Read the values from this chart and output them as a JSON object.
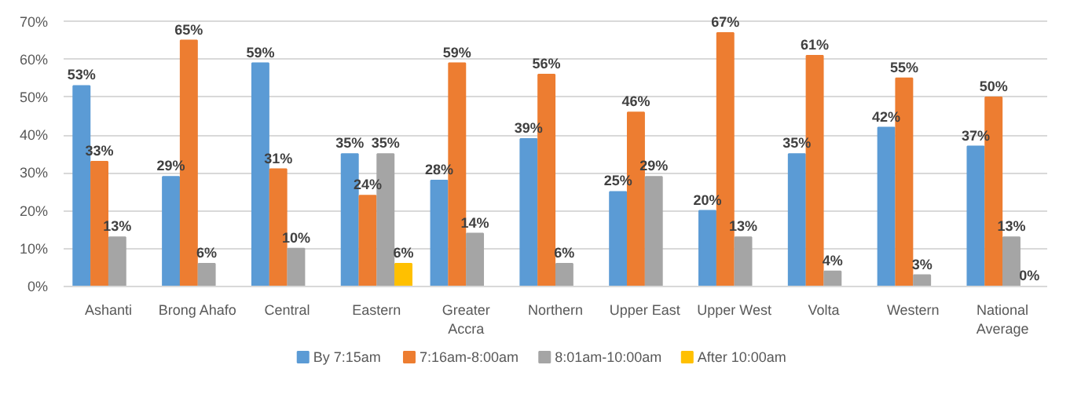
{
  "chart_data": {
    "type": "bar",
    "categories": [
      "Ashanti",
      "Brong Ahafo",
      "Central",
      "Eastern",
      "Greater Accra",
      "Northern",
      "Upper East",
      "Upper West",
      "Volta",
      "Western",
      "National Average"
    ],
    "series": [
      {
        "name": "By 7:15am",
        "color": "#5b9bd5",
        "values": [
          53,
          29,
          59,
          35,
          28,
          39,
          25,
          20,
          35,
          42,
          37
        ],
        "value_labels": [
          "53%",
          "29%",
          "59%",
          "35%",
          "28%",
          "39%",
          "25%",
          "20%",
          "35%",
          "42%",
          "37%"
        ]
      },
      {
        "name": "7:16am-8:00am",
        "color": "#ed7d31",
        "values": [
          33,
          65,
          31,
          24,
          59,
          56,
          46,
          67,
          61,
          55,
          50
        ],
        "value_labels": [
          "33%",
          "65%",
          "31%",
          "24%",
          "59%",
          "56%",
          "46%",
          "67%",
          "61%",
          "55%",
          "50%"
        ]
      },
      {
        "name": "8:01am-10:00am",
        "color": "#a5a5a5",
        "values": [
          13,
          6,
          10,
          35,
          14,
          6,
          29,
          13,
          4,
          3,
          13
        ],
        "value_labels": [
          "13%",
          "6%",
          "10%",
          "35%",
          "14%",
          "6%",
          "29%",
          "13%",
          "4%",
          "3%",
          "13%"
        ]
      },
      {
        "name": "After 10:00am",
        "color": "#ffc000",
        "values": [
          null,
          null,
          null,
          6,
          null,
          null,
          null,
          null,
          null,
          null,
          0
        ],
        "value_labels": [
          null,
          null,
          null,
          "6%",
          null,
          null,
          null,
          null,
          null,
          null,
          "0%"
        ]
      }
    ],
    "ylim": [
      0,
      70
    ],
    "yticks": [
      {
        "value": 0,
        "label": "0%"
      },
      {
        "value": 10,
        "label": "10%"
      },
      {
        "value": 20,
        "label": "20%"
      },
      {
        "value": 30,
        "label": "30%"
      },
      {
        "value": 40,
        "label": "40%"
      },
      {
        "value": 50,
        "label": "50%"
      },
      {
        "value": 60,
        "label": "60%"
      },
      {
        "value": 70,
        "label": "70%"
      }
    ],
    "grid": "y",
    "legend": "bottom"
  }
}
